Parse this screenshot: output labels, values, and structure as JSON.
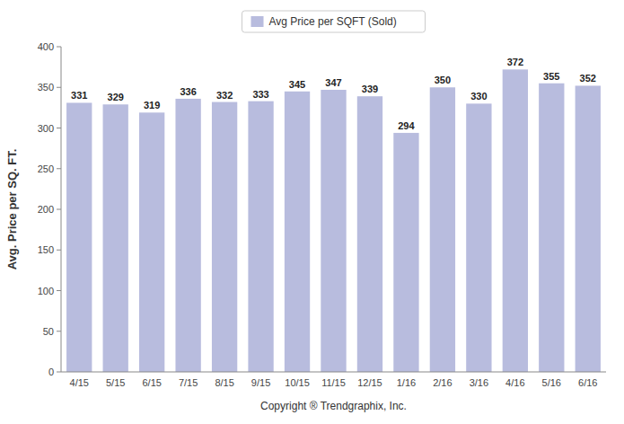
{
  "chart_data": {
    "type": "bar",
    "categories": [
      "4/15",
      "5/15",
      "6/15",
      "7/15",
      "8/15",
      "9/15",
      "10/15",
      "11/15",
      "12/15",
      "1/16",
      "2/16",
      "3/16",
      "4/16",
      "5/16",
      "6/16"
    ],
    "series": [
      {
        "name": "Avg Price per SQFT (Sold)",
        "color": "#b8bcde",
        "values": [
          331,
          329,
          319,
          336,
          332,
          333,
          345,
          347,
          339,
          294,
          350,
          330,
          372,
          355,
          352
        ]
      }
    ],
    "ylabel": "Avg. Price per SQ. FT.",
    "xlabel": "Copyright ® Trendgraphix, Inc.",
    "ylim": [
      0,
      400
    ],
    "yticks": [
      0,
      50,
      100,
      150,
      200,
      250,
      300,
      350,
      400
    ],
    "grid": false,
    "legend": "top",
    "data_labels": true
  }
}
